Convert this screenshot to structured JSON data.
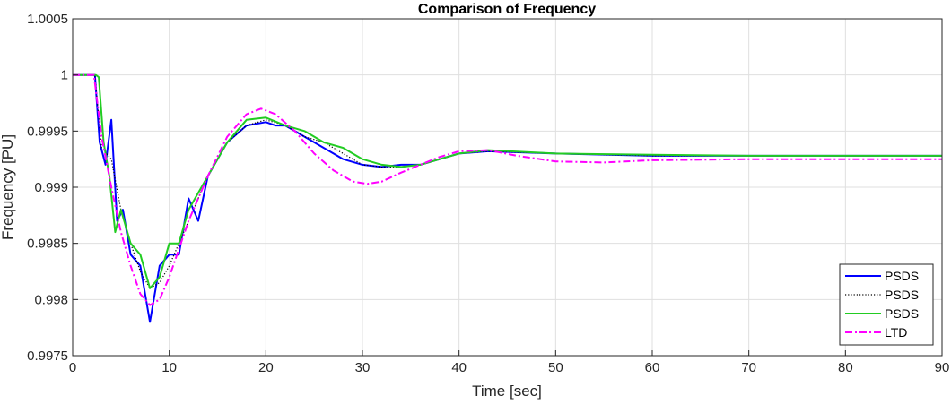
{
  "chart_data": {
    "type": "line",
    "title": "Comparison of Frequency",
    "xlabel": "Time [sec]",
    "ylabel": "Frequency [PU]",
    "xlim": [
      0,
      90
    ],
    "ylim": [
      0.9975,
      1.0005
    ],
    "xticks": [
      0,
      10,
      20,
      30,
      40,
      50,
      60,
      70,
      80,
      90
    ],
    "xtick_labels": [
      "0",
      "10",
      "20",
      "30",
      "40",
      "50",
      "60",
      "70",
      "80",
      "90"
    ],
    "yticks": [
      0.9975,
      0.998,
      0.9985,
      0.999,
      0.9995,
      1,
      1.0005
    ],
    "ytick_labels": [
      "0.9975",
      "0.998",
      "0.9985",
      "0.999",
      "0.9995",
      "1",
      "1.0005"
    ],
    "grid": true,
    "legend_position": "bottom-right",
    "series": [
      {
        "name": "PSDS",
        "color": "#0000ff",
        "style": "solid",
        "x": [
          0,
          2.3,
          2.8,
          3.4,
          4.0,
          4.6,
          5.2,
          6.0,
          7.0,
          8.0,
          9.0,
          10.0,
          11.0,
          12.0,
          13.0,
          14.0,
          16.0,
          18.0,
          20.0,
          21.0,
          22.0,
          23.0,
          24.0,
          25.0,
          26.0,
          27.0,
          28.0,
          30.0,
          32.0,
          34.0,
          36.0,
          38.0,
          40.0,
          43.0,
          50.0,
          60.0,
          70.0,
          80.0,
          90.0
        ],
        "y": [
          1.0,
          1.0,
          0.9994,
          0.9992,
          0.9996,
          0.9987,
          0.9988,
          0.9984,
          0.9983,
          0.9978,
          0.9983,
          0.9984,
          0.9984,
          0.9989,
          0.9987,
          0.9991,
          0.9994,
          0.99955,
          0.99958,
          0.99955,
          0.99955,
          0.9995,
          0.99945,
          0.9994,
          0.99935,
          0.9993,
          0.99925,
          0.9992,
          0.99918,
          0.9992,
          0.9992,
          0.99925,
          0.9993,
          0.99932,
          0.9993,
          0.99928,
          0.99928,
          0.99928,
          0.99928
        ]
      },
      {
        "name": "PSDS",
        "color": "#000000",
        "style": "dotted",
        "x": [
          0,
          2.3,
          3.0,
          4.0,
          5.0,
          6.0,
          7.0,
          8.0,
          9.0,
          10.0,
          12.0,
          14.0,
          16.0,
          18.0,
          20.0,
          22.0,
          24.0,
          26.0,
          28.0,
          30.0,
          32.0,
          34.0,
          36.0,
          38.0,
          40.0,
          43.0,
          50.0,
          60.0,
          70.0,
          80.0,
          90.0
        ],
        "y": [
          1.0,
          1.0,
          0.99935,
          0.99925,
          0.9988,
          0.9985,
          0.99825,
          0.9981,
          0.99815,
          0.9983,
          0.9987,
          0.9991,
          0.9994,
          0.99955,
          0.9996,
          0.99955,
          0.99945,
          0.9994,
          0.9993,
          0.9992,
          0.99918,
          0.99918,
          0.9992,
          0.99925,
          0.9993,
          0.99932,
          0.9993,
          0.99928,
          0.99928,
          0.99928,
          0.99928
        ]
      },
      {
        "name": "PSDS",
        "color": "#22cc22",
        "style": "solid",
        "x": [
          0,
          2.4,
          2.7,
          3.2,
          3.8,
          4.4,
          5.0,
          6.0,
          7.0,
          8.0,
          9.0,
          10.0,
          11.0,
          12.0,
          14.0,
          16.0,
          18.0,
          20.0,
          22.0,
          24.0,
          26.0,
          28.0,
          30.0,
          32.0,
          34.0,
          36.0,
          38.0,
          40.0,
          43.0,
          50.0,
          60.0,
          70.0,
          80.0,
          90.0
        ],
        "y": [
          1.0,
          1.0,
          0.99998,
          0.9994,
          0.9991,
          0.9986,
          0.9988,
          0.9985,
          0.9984,
          0.9981,
          0.9982,
          0.9985,
          0.9985,
          0.9988,
          0.9991,
          0.9994,
          0.9996,
          0.99962,
          0.99955,
          0.9995,
          0.9994,
          0.99935,
          0.99925,
          0.9992,
          0.99918,
          0.9992,
          0.99925,
          0.9993,
          0.99933,
          0.9993,
          0.99929,
          0.99928,
          0.99928,
          0.99928
        ]
      },
      {
        "name": "LTD",
        "color": "#ff00ff",
        "style": "dashdot",
        "x": [
          0,
          2.2,
          3.0,
          4.0,
          5.0,
          6.0,
          7.0,
          8.0,
          9.0,
          10.0,
          12.0,
          14.0,
          16.0,
          18.0,
          19.5,
          21.0,
          23.0,
          25.0,
          27.0,
          29.0,
          30.5,
          32.0,
          34.0,
          36.0,
          38.0,
          40.0,
          43.0,
          46.0,
          50.0,
          55.0,
          60.0,
          70.0,
          80.0,
          90.0
        ],
        "y": [
          1.0,
          1.0,
          0.99945,
          0.999,
          0.9986,
          0.9983,
          0.99805,
          0.99795,
          0.998,
          0.9982,
          0.9987,
          0.9991,
          0.99945,
          0.99965,
          0.9997,
          0.99965,
          0.9995,
          0.9993,
          0.99915,
          0.99905,
          0.99903,
          0.99905,
          0.99913,
          0.9992,
          0.99927,
          0.99932,
          0.99933,
          0.99928,
          0.99923,
          0.99922,
          0.99924,
          0.99925,
          0.99925,
          0.99925
        ]
      }
    ]
  }
}
